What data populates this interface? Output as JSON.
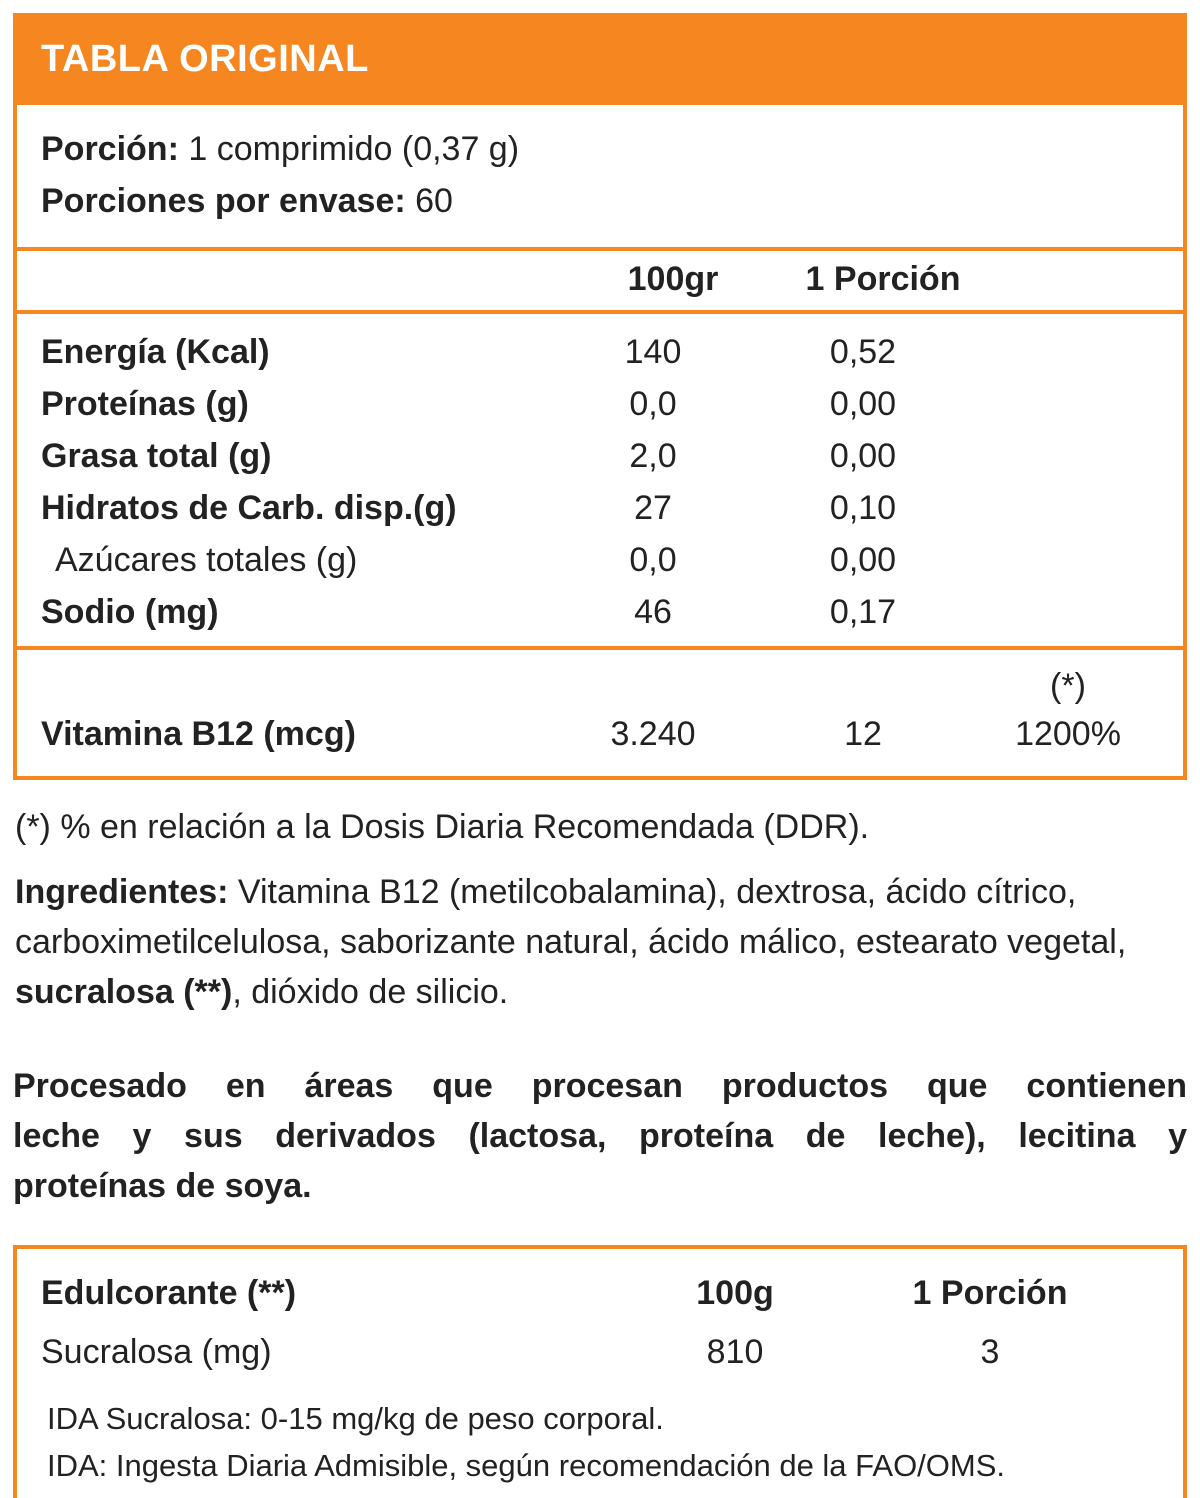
{
  "colors": {
    "accent": "#F6861F",
    "title_text": "#FFFFFF",
    "text": "#222222",
    "background": "#FFFFFF"
  },
  "title": "TABLA ORIGINAL",
  "serving": {
    "portion_label": "Porción:",
    "portion_value": " 1 comprimido (0,37 g)",
    "servings_label": "Porciones por envase:",
    "servings_value": " 60"
  },
  "nutrition_table": {
    "columns": [
      "100gr",
      "1 Porción"
    ],
    "rows": [
      {
        "label": "Energía (Kcal)",
        "per_100g": "140",
        "per_portion": "0,52"
      },
      {
        "label": "Proteínas (g)",
        "per_100g": "0,0",
        "per_portion": "0,00"
      },
      {
        "label": "Grasa total (g)",
        "per_100g": "2,0",
        "per_portion": "0,00"
      },
      {
        "label": "Hidratos de Carb. disp.(g)",
        "per_100g": "27",
        "per_portion": "0,10"
      },
      {
        "label": "Azúcares totales (g)",
        "per_100g": "0,0",
        "per_portion": "0,00"
      },
      {
        "label": "Sodio (mg)",
        "per_100g": "46",
        "per_portion": "0,17"
      }
    ],
    "vitamin_row": {
      "label": "Vitamina B12 (mcg)",
      "per_100g": "3.240",
      "per_portion": "12",
      "ddr_marker": "(*)",
      "ddr_percent": "1200%"
    }
  },
  "footnote": "(*) % en relación a la Dosis Diaria Recomendada (DDR).",
  "ingredients": {
    "label": "Ingredientes:",
    "text_before_bold": " Vitamina B12 (metilcobalamina), dextrosa, ácido cítrico, carboximetilcelulosa, saborizante natural, ácido málico, estearato vegetal, ",
    "bold_text": "sucralosa (**)",
    "text_after_bold": ", dióxido de silicio."
  },
  "allergen_notice": {
    "lines": [
      "Procesado en áreas que procesan productos que contienen",
      "leche y sus derivados (lactosa, proteína de leche), lecitina y",
      "proteínas de soya."
    ]
  },
  "sweetener_table": {
    "header_label": "Edulcorante (**)",
    "columns": [
      "100g",
      "1 Porción"
    ],
    "rows": [
      {
        "label": "Sucralosa (mg)",
        "per_100g": "810",
        "per_portion": "3"
      }
    ],
    "notes": [
      "IDA Sucralosa: 0-15 mg/kg de peso corporal.",
      "IDA: Ingesta Diaria Admisible, según recomendación de la FAO/OMS."
    ]
  }
}
